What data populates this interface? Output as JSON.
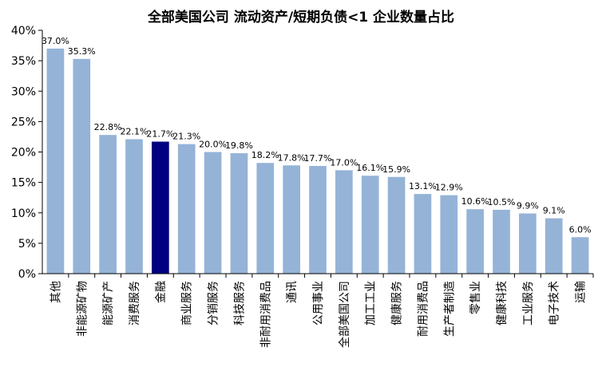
{
  "chart_data": {
    "type": "bar",
    "title": "全部美国公司 流动资产/短期负债<1 企业数量占比",
    "xlabel": "",
    "ylabel": "",
    "ylim": [
      0,
      40
    ],
    "yticks": [
      "0%",
      "5%",
      "10%",
      "15%",
      "20%",
      "25%",
      "30%",
      "35%",
      "40%"
    ],
    "ytick_values": [
      0,
      5,
      10,
      15,
      20,
      25,
      30,
      35,
      40
    ],
    "grid": false,
    "categories": [
      "其他",
      "非能源矿物",
      "能源矿产",
      "消费服务",
      "金融",
      "商业服务",
      "分销服务",
      "科技服务",
      "非耐用消费品",
      "通讯",
      "公用事业",
      "全部美国公司",
      "加工工业",
      "健康服务",
      "耐用消费品",
      "生产者制造",
      "零售业",
      "健康科技",
      "工业服务",
      "电子技术",
      "运输"
    ],
    "values": [
      37.0,
      35.3,
      22.8,
      22.1,
      21.7,
      21.3,
      20.0,
      19.8,
      18.2,
      17.8,
      17.7,
      17.0,
      16.1,
      15.9,
      13.1,
      12.9,
      10.6,
      10.5,
      9.9,
      9.1,
      6.0
    ],
    "labels": [
      "37.0%",
      "35.3%",
      "22.8%",
      "22.1%",
      "21.7%",
      "21.3%",
      "20.0%",
      "19.8%",
      "18.2%",
      "17.8%",
      "17.7%",
      "17.0%",
      "16.1%",
      "15.9%",
      "13.1%",
      "12.9%",
      "10.6%",
      "10.5%",
      "9.9%",
      "9.1%",
      "6.0%"
    ],
    "highlight_index": 4,
    "colors": {
      "bar": "#95b3d7",
      "highlight": "#000080",
      "axis": "#000000"
    }
  }
}
